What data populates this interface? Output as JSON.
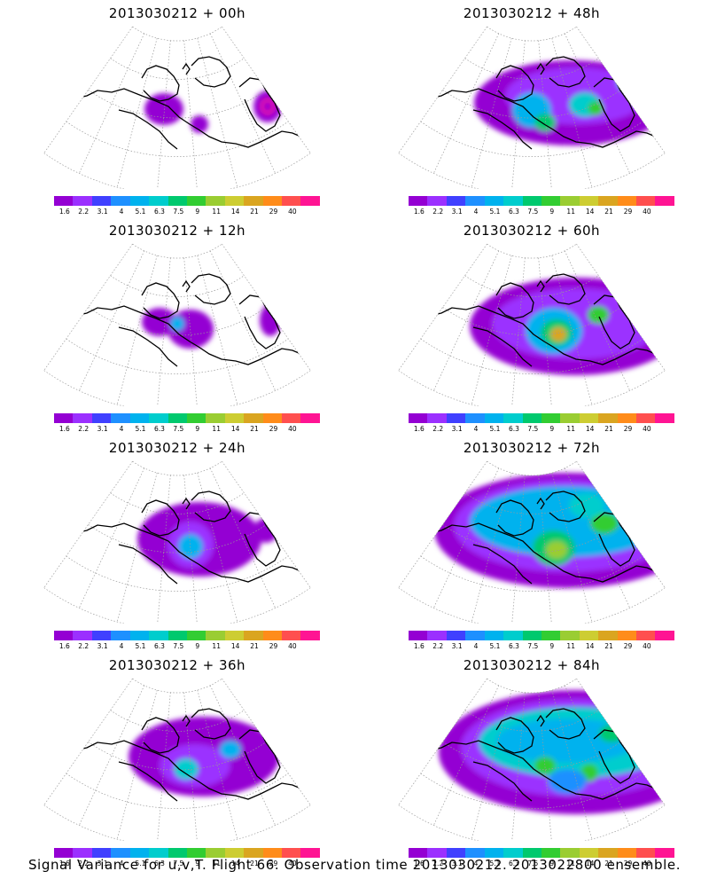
{
  "panels": [
    {
      "title": "2013030212 + 00h"
    },
    {
      "title": "2013030212 + 48h"
    },
    {
      "title": "2013030212 + 12h"
    },
    {
      "title": "2013030212 + 60h"
    },
    {
      "title": "2013030212 + 24h"
    },
    {
      "title": "2013030212 + 72h"
    },
    {
      "title": "2013030212 + 36h"
    },
    {
      "title": "2013030212 + 84h"
    }
  ],
  "colorbar": {
    "labels": [
      "1.6",
      "2.2",
      "3.1",
      "4",
      "5.1",
      "6.3",
      "7.5",
      "9",
      "11",
      "14",
      "21",
      "29",
      "40"
    ],
    "colors": [
      "#9400d3",
      "#9b30ff",
      "#4040ff",
      "#1e90ff",
      "#00b2ee",
      "#00cdcd",
      "#00c96e",
      "#32cd32",
      "#9acd32",
      "#cdcd32",
      "#daa520",
      "#ff8c1a",
      "#ff4f4f",
      "#ff1493"
    ]
  },
  "caption": "Signal Variance for u,v,T. Flight 66. Observation time 2013030212. 2013022800 ensemble."
}
